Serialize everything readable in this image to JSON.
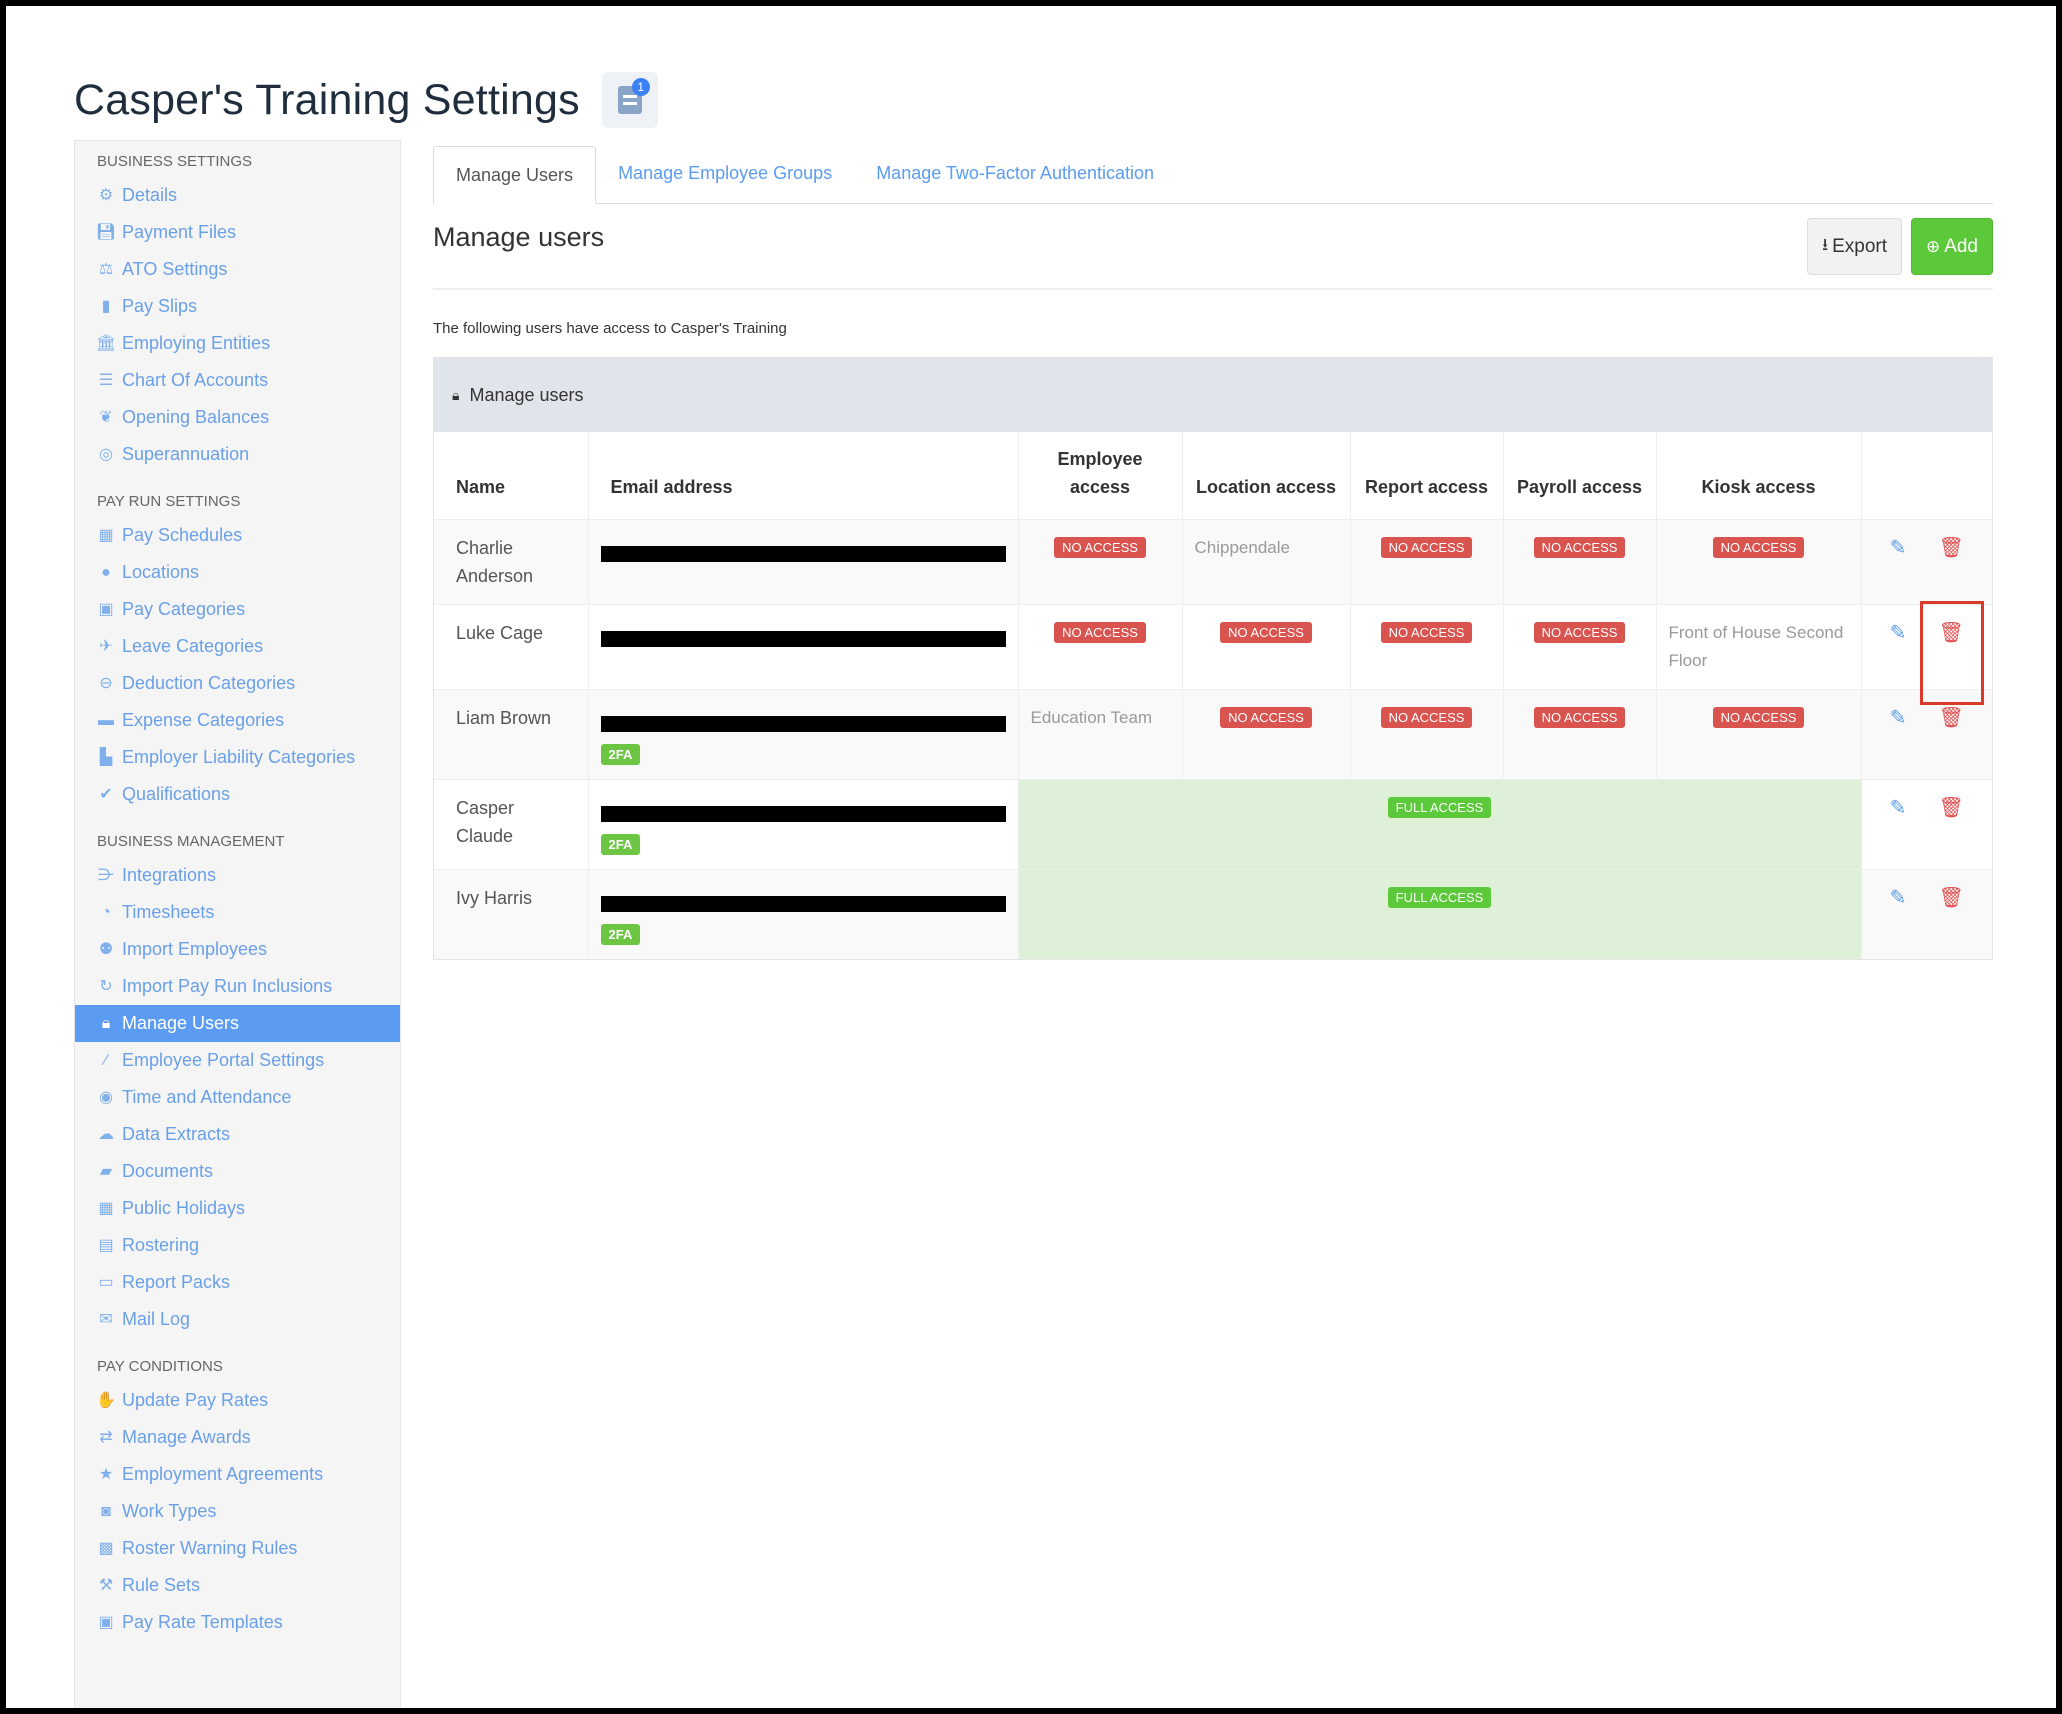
{
  "page": {
    "title": "Casper's Training Settings",
    "notification_count": "1"
  },
  "sidebar": {
    "sections": [
      {
        "heading": "BUSINESS SETTINGS",
        "items": [
          {
            "label": "Details",
            "icon": "gear-icon"
          },
          {
            "label": "Payment Files",
            "icon": "floppy-icon"
          },
          {
            "label": "ATO Settings",
            "icon": "scales-icon"
          },
          {
            "label": "Pay Slips",
            "icon": "file-icon"
          },
          {
            "label": "Employing Entities",
            "icon": "bank-icon"
          },
          {
            "label": "Chart Of Accounts",
            "icon": "list-icon"
          },
          {
            "label": "Opening Balances",
            "icon": "leaf-icon"
          },
          {
            "label": "Superannuation",
            "icon": "lifebuoy-icon"
          }
        ]
      },
      {
        "heading": "PAY RUN SETTINGS",
        "items": [
          {
            "label": "Pay Schedules",
            "icon": "calendar-icon"
          },
          {
            "label": "Locations",
            "icon": "globe-icon"
          },
          {
            "label": "Pay Categories",
            "icon": "money-icon"
          },
          {
            "label": "Leave Categories",
            "icon": "plane-icon"
          },
          {
            "label": "Deduction Categories",
            "icon": "minus-circle-icon"
          },
          {
            "label": "Expense Categories",
            "icon": "archive-icon"
          },
          {
            "label": "Employer Liability Categories",
            "icon": "bar-chart-icon"
          },
          {
            "label": "Qualifications",
            "icon": "check-icon"
          }
        ]
      },
      {
        "heading": "BUSINESS MANAGEMENT",
        "items": [
          {
            "label": "Integrations",
            "icon": "integrations-icon"
          },
          {
            "label": "Timesheets",
            "icon": "clock-icon"
          },
          {
            "label": "Import Employees",
            "icon": "users-icon"
          },
          {
            "label": "Import Pay Run Inclusions",
            "icon": "refresh-icon"
          },
          {
            "label": "Manage Users",
            "icon": "lock-icon",
            "active": true
          },
          {
            "label": "Employee Portal Settings",
            "icon": "wand-icon"
          },
          {
            "label": "Time and Attendance",
            "icon": "user-circle-icon"
          },
          {
            "label": "Data Extracts",
            "icon": "cloud-download-icon"
          },
          {
            "label": "Documents",
            "icon": "folder-icon"
          },
          {
            "label": "Public Holidays",
            "icon": "calendar-icon"
          },
          {
            "label": "Rostering",
            "icon": "calendar-grid-icon"
          },
          {
            "label": "Report Packs",
            "icon": "folder-open-icon"
          },
          {
            "label": "Mail Log",
            "icon": "envelope-icon"
          }
        ]
      },
      {
        "heading": "PAY CONDITIONS",
        "items": [
          {
            "label": "Update Pay Rates",
            "icon": "hand-money-icon"
          },
          {
            "label": "Manage Awards",
            "icon": "exchange-icon"
          },
          {
            "label": "Employment Agreements",
            "icon": "star-icon"
          },
          {
            "label": "Work Types",
            "icon": "camera-icon"
          },
          {
            "label": "Roster Warning Rules",
            "icon": "calendar-alert-icon"
          },
          {
            "label": "Rule Sets",
            "icon": "gavel-icon"
          },
          {
            "label": "Pay Rate Templates",
            "icon": "money-icon"
          }
        ]
      }
    ]
  },
  "tabs": [
    {
      "label": "Manage Users",
      "active": true
    },
    {
      "label": "Manage Employee Groups"
    },
    {
      "label": "Manage Two-Factor Authentication"
    }
  ],
  "main": {
    "section_title": "Manage users",
    "export_label": "Export",
    "add_label": "Add",
    "intro_text": "The following users have access to Casper's Training",
    "panel_title": "Manage users"
  },
  "table": {
    "columns": [
      "Name",
      "Email address",
      "Employee access",
      "Location access",
      "Report access",
      "Payroll access",
      "Kiosk access",
      ""
    ],
    "rows": [
      {
        "name": "Charlie Anderson",
        "twofa": false,
        "full": false,
        "cells": [
          {
            "badge": "NO ACCESS"
          },
          {
            "text": "Chippendale"
          },
          {
            "badge": "NO ACCESS"
          },
          {
            "badge": "NO ACCESS"
          },
          {
            "badge": "NO ACCESS"
          }
        ]
      },
      {
        "name": "Luke Cage",
        "twofa": false,
        "full": false,
        "cells": [
          {
            "badge": "NO ACCESS"
          },
          {
            "badge": "NO ACCESS"
          },
          {
            "badge": "NO ACCESS"
          },
          {
            "badge": "NO ACCESS"
          },
          {
            "text": "Front of House Second Floor"
          }
        ]
      },
      {
        "name": "Liam Brown",
        "twofa": true,
        "full": false,
        "cells": [
          {
            "text": "Education Team"
          },
          {
            "badge": "NO ACCESS"
          },
          {
            "badge": "NO ACCESS"
          },
          {
            "badge": "NO ACCESS"
          },
          {
            "badge": "NO ACCESS"
          }
        ]
      },
      {
        "name": "Casper Claude",
        "twofa": true,
        "full": true,
        "full_label": "FULL ACCESS"
      },
      {
        "name": "Ivy Harris",
        "twofa": true,
        "full": true,
        "full_label": "FULL ACCESS"
      }
    ],
    "twofa_label": "2FA"
  },
  "colors": {
    "accent": "#5b9cf2",
    "danger": "#d9534f",
    "success": "#5cc93a",
    "highlight": "#d93a2b"
  }
}
